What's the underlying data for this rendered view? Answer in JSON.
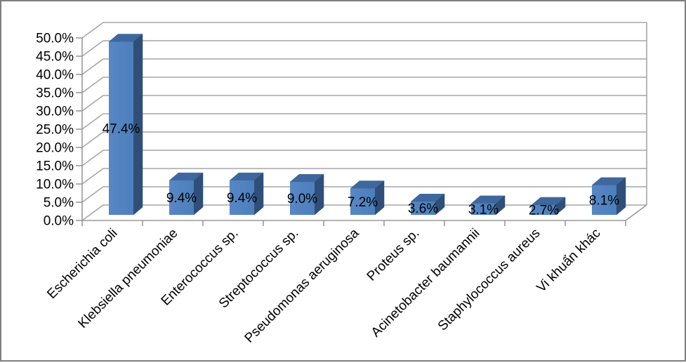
{
  "chart_data": {
    "type": "bar",
    "style": "3d-clustered-column",
    "title": "",
    "xlabel": "",
    "ylabel": "",
    "categories": [
      "Escherichia coli",
      "Klebsiella pneumoniae",
      "Enterococcus sp.",
      "Streptococcus sp.",
      "Pseudomonas aeruginosa",
      "Proteus sp.",
      "Acinetobacter baumannii",
      "Staphylococcus aureus",
      "Vi khuẩn khác"
    ],
    "values": [
      47.4,
      9.4,
      9.4,
      9.0,
      7.2,
      3.6,
      3.1,
      2.7,
      8.1
    ],
    "data_labels": [
      "47.4%",
      "9.4%",
      "9.4%",
      "9.0%",
      "7.2%",
      "3.6%",
      "3.1%",
      "2.7%",
      "8.1%"
    ],
    "ylim": [
      0,
      50
    ],
    "ytick_step": 5,
    "ytick_labels": [
      "0.0%",
      "5.0%",
      "10.0%",
      "15.0%",
      "20.0%",
      "25.0%",
      "30.0%",
      "35.0%",
      "40.0%",
      "45.0%",
      "50.0%"
    ],
    "grid": true,
    "legend": false,
    "colors": {
      "bar_front": "#4D7FBC",
      "bar_front_light": "#5787C4",
      "bar_side": "#2F4F79",
      "bar_top": "#3E689D",
      "gridline": "#A6A6A6",
      "axis": "#999999",
      "label": "#000000",
      "frame_border": "#7F7F7F",
      "background": "#FFFFFF"
    }
  }
}
